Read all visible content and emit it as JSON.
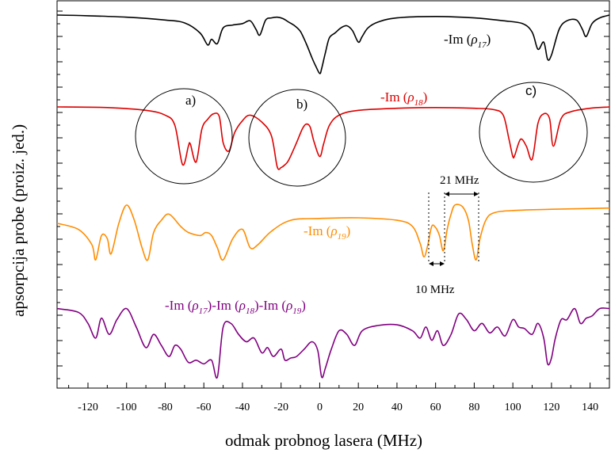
{
  "chart_data": {
    "type": "line",
    "xlabel": "odmak probnog lasera  (MHz)",
    "ylabel": "apsorpcija probe (proiz. jed.)",
    "xlim": [
      -136,
      150
    ],
    "x_ticks": [
      -120,
      -100,
      -80,
      -60,
      -40,
      -20,
      0,
      20,
      40,
      60,
      80,
      100,
      120,
      140
    ],
    "y_ticks_shown": false,
    "series": [
      {
        "name": "-Im (ρ17)",
        "color": "#000000",
        "baseline": 0.1,
        "x": [
          -136,
          -120,
          -100,
          -80,
          -70,
          -62,
          -58,
          -56,
          -53,
          -50,
          -45,
          -40,
          -36,
          -33,
          -31,
          -28,
          -25,
          -22,
          -19,
          -16,
          -13,
          -10,
          -7,
          -4,
          -2,
          0,
          1,
          3,
          5,
          8,
          11,
          14,
          17,
          20,
          22,
          25,
          30,
          40,
          60,
          80,
          95,
          105,
          110,
          113,
          116,
          118,
          120,
          124,
          128,
          133,
          136,
          138,
          141,
          145,
          150
        ],
        "y": [
          0.1,
          0.11,
          0.13,
          0.17,
          0.21,
          0.35,
          0.52,
          0.44,
          0.5,
          0.28,
          0.24,
          0.22,
          0.18,
          0.3,
          0.38,
          0.17,
          0.14,
          0.13,
          0.15,
          0.2,
          0.25,
          0.33,
          0.5,
          0.7,
          0.82,
          0.92,
          0.85,
          0.62,
          0.42,
          0.35,
          0.28,
          0.25,
          0.32,
          0.48,
          0.4,
          0.28,
          0.2,
          0.14,
          0.12,
          0.14,
          0.18,
          0.22,
          0.34,
          0.58,
          0.48,
          0.72,
          0.66,
          0.3,
          0.18,
          0.17,
          0.3,
          0.4,
          0.22,
          0.14,
          0.1
        ]
      },
      {
        "name": "-Im (ρ18)",
        "color": "#dd0000",
        "x": [
          -136,
          -110,
          -90,
          -80,
          -75,
          -71,
          -68,
          -67,
          -64,
          -61,
          -58,
          -55,
          -52,
          -50,
          -47,
          -44,
          -40,
          -36,
          -30,
          -25,
          -22,
          -20,
          -18,
          -16,
          -12,
          -9,
          -7,
          -5,
          -3,
          0,
          2,
          5,
          10,
          20,
          40,
          60,
          80,
          90,
          95,
          98,
          100,
          101,
          104,
          107,
          110,
          113,
          116,
          119,
          121,
          125,
          130,
          140,
          150
        ],
        "y": [
          0.08,
          0.09,
          0.13,
          0.2,
          0.35,
          0.92,
          0.65,
          0.62,
          0.88,
          0.4,
          0.26,
          0.18,
          0.22,
          0.6,
          0.72,
          0.45,
          0.28,
          0.2,
          0.3,
          0.5,
          0.95,
          0.96,
          0.92,
          0.85,
          0.6,
          0.4,
          0.33,
          0.37,
          0.58,
          0.8,
          0.62,
          0.35,
          0.2,
          0.13,
          0.1,
          0.09,
          0.1,
          0.12,
          0.2,
          0.55,
          0.8,
          0.78,
          0.55,
          0.65,
          0.84,
          0.32,
          0.18,
          0.25,
          0.65,
          0.25,
          0.15,
          0.1,
          0.08
        ]
      },
      {
        "name": "-Im (ρ19)",
        "color": "#ff8c00",
        "x": [
          -136,
          -125,
          -118,
          -116,
          -113,
          -110,
          -108,
          -104,
          -100,
          -96,
          -92,
          -89,
          -86,
          -82,
          -78,
          -72,
          -68,
          -62,
          -59,
          -56,
          -53,
          -50,
          -45,
          -40,
          -36,
          -32,
          -25,
          -15,
          0,
          20,
          40,
          48,
          52,
          54,
          56,
          58,
          60,
          62,
          64,
          66,
          68,
          70,
          74,
          77,
          79,
          81,
          83,
          86,
          90,
          100,
          120,
          150
        ],
        "y": [
          0.35,
          0.45,
          0.7,
          0.95,
          0.55,
          0.6,
          0.85,
          0.35,
          0.05,
          0.3,
          0.75,
          0.95,
          0.5,
          0.3,
          0.2,
          0.4,
          0.5,
          0.55,
          0.5,
          0.55,
          0.75,
          0.95,
          0.6,
          0.45,
          0.75,
          0.7,
          0.48,
          0.3,
          0.27,
          0.26,
          0.3,
          0.4,
          0.68,
          0.9,
          0.7,
          0.4,
          0.42,
          0.55,
          0.8,
          0.45,
          0.2,
          0.05,
          0.08,
          0.3,
          0.7,
          0.95,
          0.6,
          0.3,
          0.18,
          0.14,
          0.12,
          0.1
        ]
      },
      {
        "name": "-Im (ρ17)-Im (ρ18)-Im (ρ19)",
        "color": "#800080",
        "x": [
          -136,
          -125,
          -120,
          -116,
          -113,
          -109,
          -105,
          -100,
          -95,
          -90,
          -86,
          -82,
          -78,
          -75,
          -72,
          -68,
          -64,
          -60,
          -56,
          -53,
          -50,
          -46,
          -42,
          -38,
          -34,
          -30,
          -27,
          -24,
          -20,
          -18,
          -15,
          -12,
          -8,
          -4,
          -1,
          1,
          3,
          6,
          10,
          14,
          18,
          22,
          30,
          40,
          48,
          52,
          55,
          58,
          61,
          64,
          68,
          72,
          76,
          80,
          84,
          88,
          92,
          96,
          100,
          103,
          106,
          110,
          113,
          116,
          118,
          120,
          122,
          125,
          128,
          132,
          135,
          138,
          141,
          145,
          150
        ],
        "y": [
          0.05,
          0.1,
          0.25,
          0.45,
          0.18,
          0.4,
          0.2,
          0.05,
          0.3,
          0.58,
          0.4,
          0.55,
          0.7,
          0.55,
          0.6,
          0.78,
          0.75,
          0.8,
          0.75,
          0.98,
          0.3,
          0.25,
          0.4,
          0.5,
          0.45,
          0.65,
          0.58,
          0.7,
          0.6,
          0.75,
          0.72,
          0.7,
          0.6,
          0.5,
          0.62,
          0.98,
          0.85,
          0.6,
          0.35,
          0.4,
          0.55,
          0.35,
          0.28,
          0.27,
          0.35,
          0.45,
          0.3,
          0.48,
          0.35,
          0.55,
          0.4,
          0.12,
          0.2,
          0.35,
          0.25,
          0.38,
          0.3,
          0.42,
          0.2,
          0.3,
          0.32,
          0.4,
          0.25,
          0.45,
          0.8,
          0.72,
          0.45,
          0.2,
          0.2,
          0.05,
          0.25,
          0.18,
          0.15,
          0.05,
          0.05
        ]
      }
    ],
    "annotations": {
      "rho17_label": "-Im (ρ17)",
      "rho18_label": "-Im (ρ18)",
      "rho19_label": "-Im (ρ19)",
      "sum_label": "-Im (ρ17)-Im (ρ18)-Im (ρ19)",
      "circle_a": "a)",
      "circle_b": "b)",
      "circle_c": "c)",
      "gap_21": "21 MHz",
      "gap_10": "10 MHz"
    }
  }
}
